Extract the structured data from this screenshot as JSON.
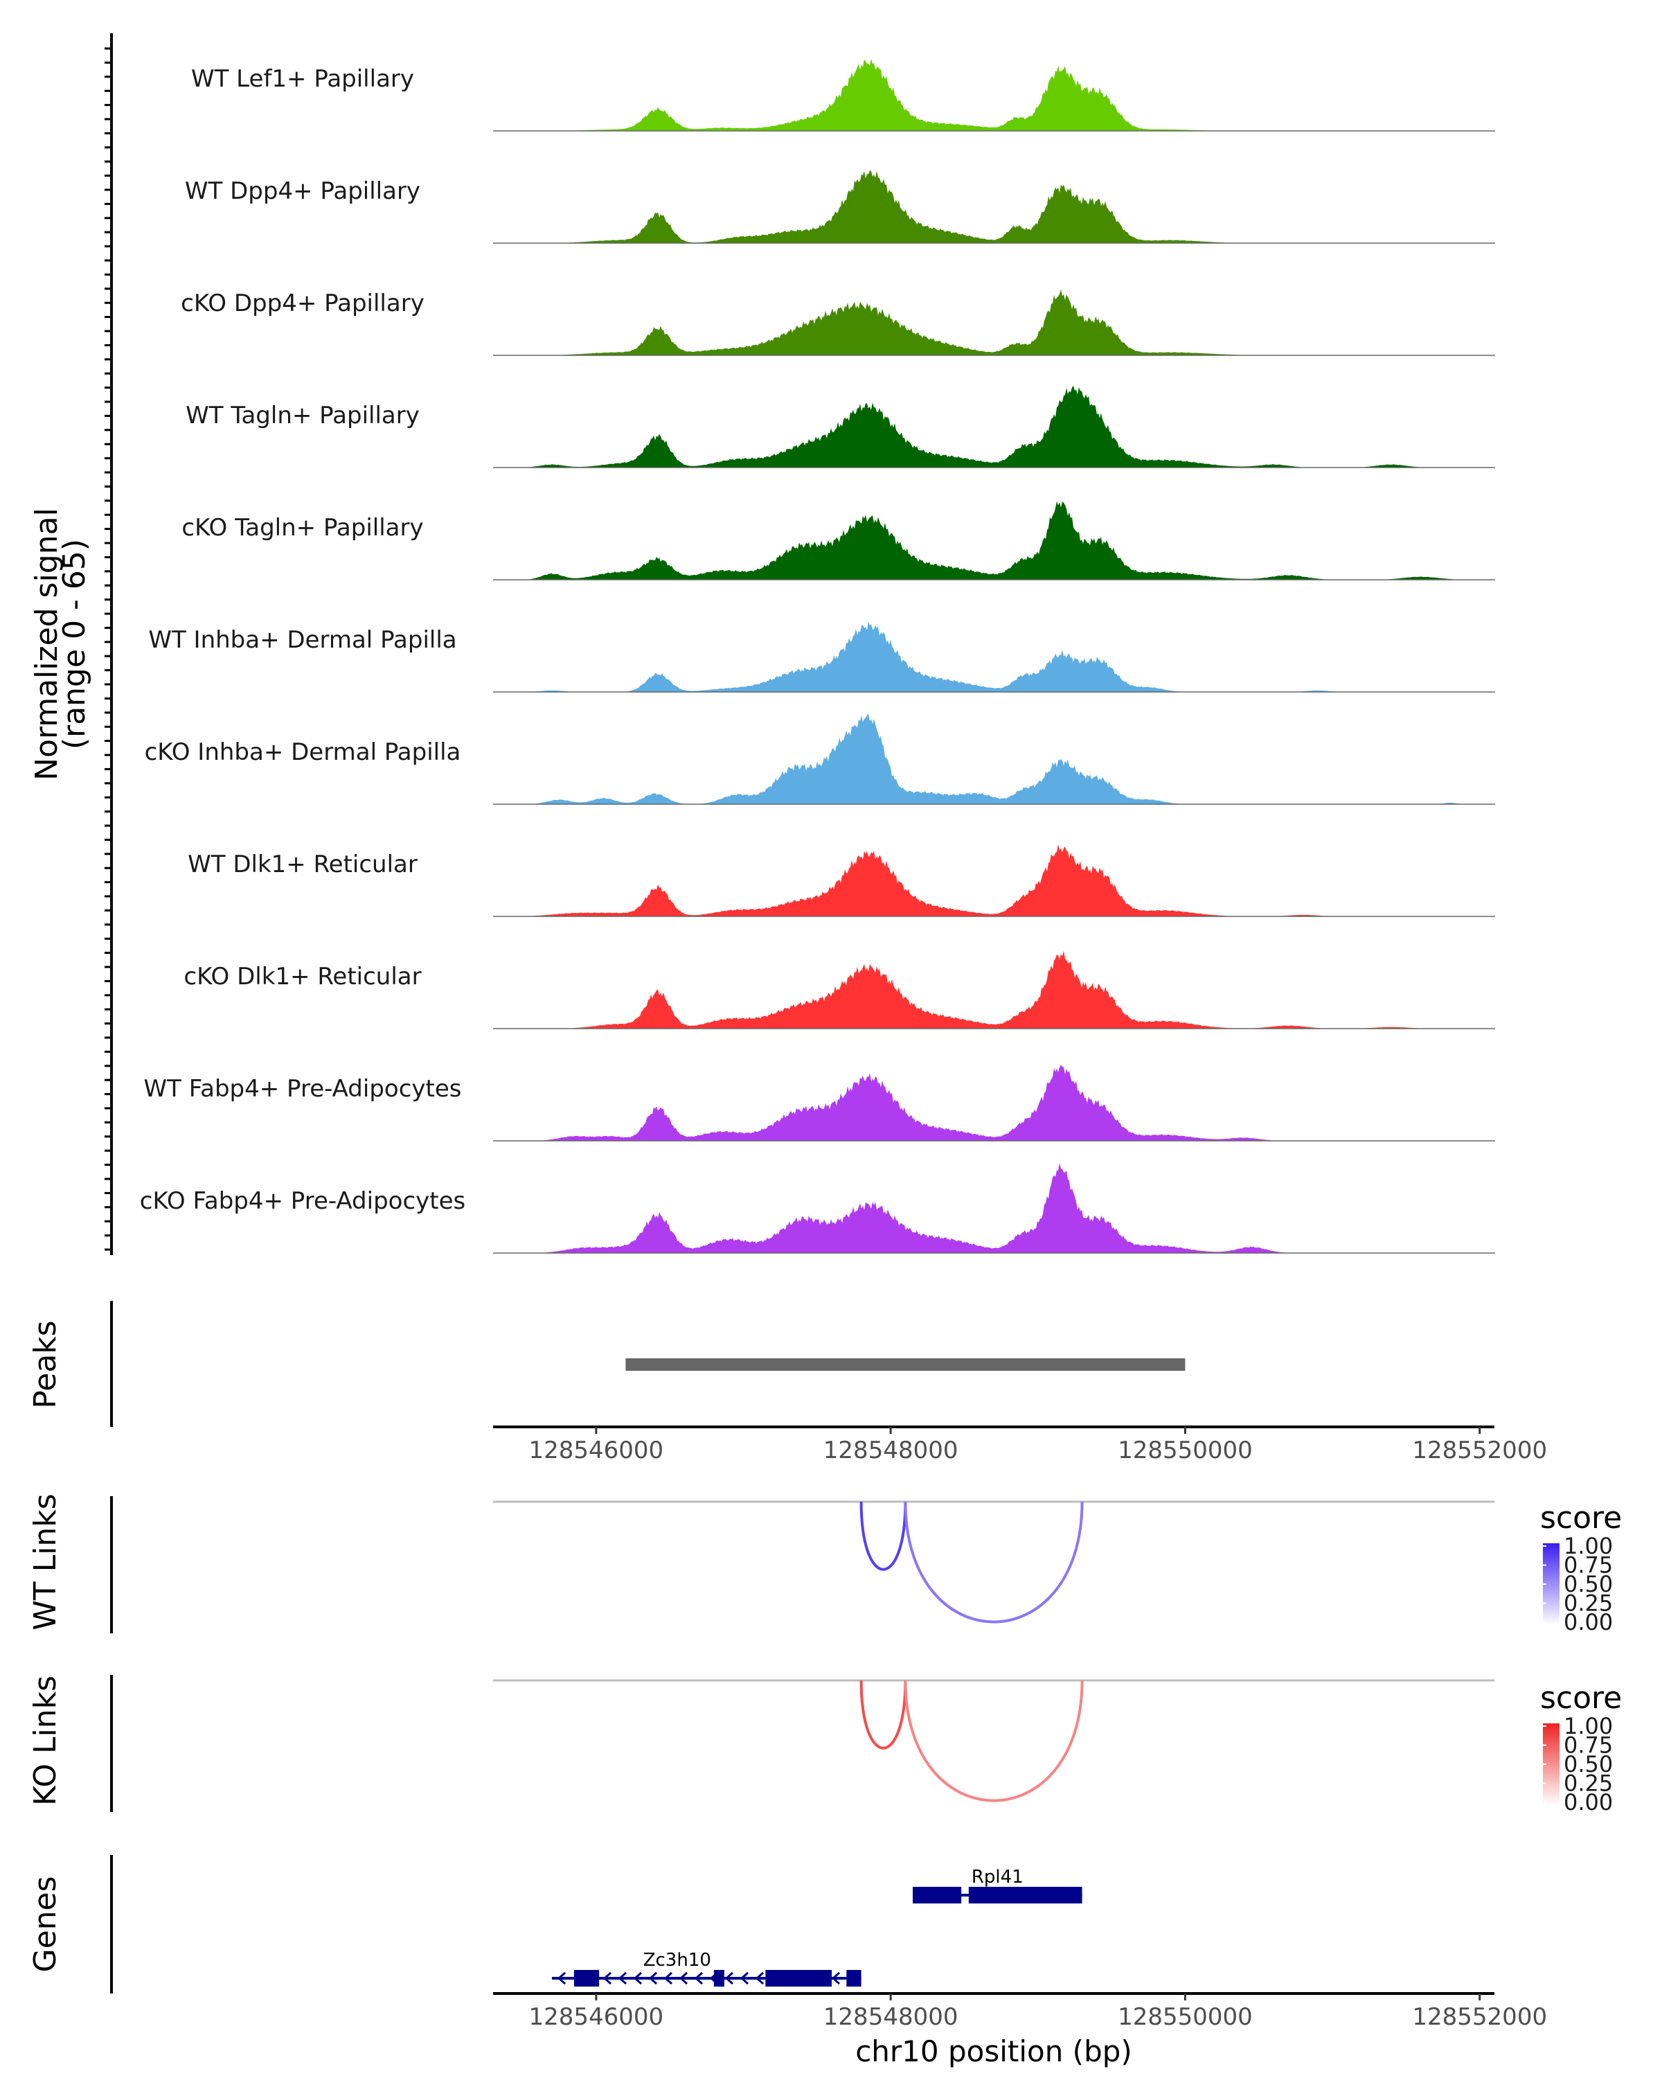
{
  "chart_data": {
    "type": "area",
    "title": "",
    "chromosome": "chr10",
    "x_range": [
      128545300,
      128552100
    ],
    "coverage_ylabel_line1": "Normalized signal",
    "coverage_ylabel_line2": "(range 0 - 65)",
    "coverage_range": [
      0,
      65
    ],
    "xlabel": "chr10 position (bp)",
    "x_ticks": [
      128546000,
      128548000,
      128550000,
      128552000
    ],
    "x_tick_labels": [
      "128546000",
      "128548000",
      "128550000",
      "128552000"
    ],
    "tracks": [
      {
        "name": "WT Lef1+ Papillary",
        "color": "#66cc00",
        "peaks": [
          [
            128546170,
            1,
            200
          ],
          [
            128546420,
            14,
            90
          ],
          [
            128546850,
            2,
            150
          ],
          [
            128547500,
            8,
            220
          ],
          [
            128547850,
            42,
            150
          ],
          [
            128548300,
            5,
            300
          ],
          [
            128548850,
            7,
            60
          ],
          [
            128549150,
            40,
            110
          ],
          [
            128549420,
            24,
            110
          ],
          [
            128549850,
            1,
            200
          ]
        ]
      },
      {
        "name": "WT Dpp4+ Papillary",
        "color": "#468a00",
        "peaks": [
          [
            128546150,
            2,
            180
          ],
          [
            128546420,
            19,
            80
          ],
          [
            128546950,
            3,
            120
          ],
          [
            128547350,
            8,
            200
          ],
          [
            128547850,
            44,
            160
          ],
          [
            128548250,
            9,
            250
          ],
          [
            128548850,
            10,
            60
          ],
          [
            128549150,
            36,
            110
          ],
          [
            128549420,
            26,
            110
          ],
          [
            128549900,
            2,
            200
          ]
        ]
      },
      {
        "name": "cKO Dpp4+ Papillary",
        "color": "#468a00",
        "peaks": [
          [
            128546150,
            2,
            200
          ],
          [
            128546420,
            17,
            80
          ],
          [
            128546900,
            4,
            220
          ],
          [
            128547400,
            14,
            200
          ],
          [
            128547800,
            30,
            220
          ],
          [
            128548250,
            8,
            250
          ],
          [
            128548850,
            7,
            70
          ],
          [
            128549150,
            40,
            100
          ],
          [
            128549420,
            22,
            110
          ],
          [
            128549900,
            2,
            250
          ]
        ]
      },
      {
        "name": "WT Tagln+ Papillary",
        "color": "#006400",
        "peaks": [
          [
            128545700,
            2,
            80
          ],
          [
            128546200,
            3,
            150
          ],
          [
            128546420,
            20,
            80
          ],
          [
            128546950,
            5,
            150
          ],
          [
            128547450,
            15,
            200
          ],
          [
            128547850,
            37,
            170
          ],
          [
            128548300,
            8,
            280
          ],
          [
            128548900,
            12,
            80
          ],
          [
            128549200,
            44,
            120
          ],
          [
            128549400,
            26,
            120
          ],
          [
            128549850,
            5,
            250
          ],
          [
            128550600,
            2,
            100
          ],
          [
            128551400,
            2,
            100
          ]
        ]
      },
      {
        "name": "cKO Tagln+ Papillary",
        "color": "#006400",
        "peaks": [
          [
            128545700,
            4,
            70
          ],
          [
            128546150,
            5,
            150
          ],
          [
            128546420,
            13,
            90
          ],
          [
            128546850,
            6,
            150
          ],
          [
            128547400,
            22,
            180
          ],
          [
            128547850,
            38,
            170
          ],
          [
            128548300,
            9,
            280
          ],
          [
            128548900,
            12,
            80
          ],
          [
            128549150,
            50,
            90
          ],
          [
            128549420,
            25,
            110
          ],
          [
            128549850,
            5,
            250
          ],
          [
            128550700,
            3,
            120
          ],
          [
            128551600,
            2,
            120
          ]
        ]
      },
      {
        "name": "WT Inhba+ Dermal Papilla",
        "color": "#5dade2",
        "peaks": [
          [
            128545700,
            1,
            80
          ],
          [
            128546420,
            12,
            80
          ],
          [
            128546900,
            2,
            150
          ],
          [
            128547400,
            14,
            200
          ],
          [
            128547850,
            40,
            160
          ],
          [
            128548250,
            9,
            280
          ],
          [
            128548900,
            9,
            70
          ],
          [
            128549150,
            24,
            110
          ],
          [
            128549420,
            20,
            110
          ],
          [
            128549750,
            3,
            100
          ],
          [
            128550900,
            1,
            80
          ]
        ]
      },
      {
        "name": "cKO Inhba+ Dermal Papilla",
        "color": "#5dade2",
        "peaks": [
          [
            128545750,
            3,
            80
          ],
          [
            128546050,
            4,
            80
          ],
          [
            128546400,
            7,
            80
          ],
          [
            128546950,
            6,
            100
          ],
          [
            128547350,
            24,
            140
          ],
          [
            128547700,
            40,
            130
          ],
          [
            128547880,
            38,
            90
          ],
          [
            128548200,
            8,
            200
          ],
          [
            128548600,
            6,
            120
          ],
          [
            128548900,
            8,
            70
          ],
          [
            128549150,
            28,
            110
          ],
          [
            128549420,
            16,
            110
          ],
          [
            128549750,
            3,
            100
          ],
          [
            128551800,
            1,
            40
          ]
        ]
      },
      {
        "name": "WT Dlk1+ Reticular",
        "color": "#ff3333",
        "peaks": [
          [
            128545850,
            2,
            150
          ],
          [
            128546150,
            2,
            150
          ],
          [
            128546420,
            19,
            80
          ],
          [
            128546950,
            4,
            150
          ],
          [
            128547400,
            10,
            180
          ],
          [
            128547850,
            40,
            170
          ],
          [
            128548250,
            6,
            250
          ],
          [
            128548900,
            10,
            80
          ],
          [
            128549150,
            44,
            110
          ],
          [
            128549420,
            28,
            110
          ],
          [
            128549850,
            4,
            200
          ],
          [
            128550800,
            1,
            100
          ]
        ]
      },
      {
        "name": "cKO Dlk1+ Reticular",
        "color": "#ff3333",
        "peaks": [
          [
            128546150,
            3,
            150
          ],
          [
            128546420,
            24,
            80
          ],
          [
            128546900,
            6,
            150
          ],
          [
            128547400,
            15,
            200
          ],
          [
            128547850,
            38,
            180
          ],
          [
            128548300,
            8,
            260
          ],
          [
            128548900,
            9,
            80
          ],
          [
            128549150,
            48,
            100
          ],
          [
            128549420,
            26,
            110
          ],
          [
            128549850,
            5,
            200
          ],
          [
            128550700,
            2,
            120
          ],
          [
            128551400,
            1,
            120
          ]
        ]
      },
      {
        "name": "WT Fabp4+ Pre-Adipocytes",
        "color": "#b03cf0",
        "peaks": [
          [
            128545850,
            3,
            100
          ],
          [
            128546100,
            3,
            100
          ],
          [
            128546420,
            22,
            80
          ],
          [
            128546850,
            6,
            150
          ],
          [
            128547400,
            20,
            180
          ],
          [
            128547850,
            40,
            170
          ],
          [
            128548300,
            8,
            250
          ],
          [
            128548900,
            9,
            80
          ],
          [
            128549150,
            48,
            110
          ],
          [
            128549420,
            22,
            110
          ],
          [
            128549850,
            4,
            200
          ],
          [
            128550400,
            2,
            100
          ]
        ]
      },
      {
        "name": "cKO Fabp4+ Pre-Adipocytes",
        "color": "#b03cf0",
        "peaks": [
          [
            128545900,
            3,
            120
          ],
          [
            128546200,
            4,
            150
          ],
          [
            128546420,
            24,
            90
          ],
          [
            128546900,
            9,
            150
          ],
          [
            128547400,
            22,
            160
          ],
          [
            128547850,
            30,
            170
          ],
          [
            128548300,
            10,
            250
          ],
          [
            128548900,
            12,
            80
          ],
          [
            128549150,
            56,
            90
          ],
          [
            128549420,
            22,
            110
          ],
          [
            128549800,
            5,
            200
          ],
          [
            128550450,
            4,
            100
          ]
        ]
      }
    ],
    "peaks_track": {
      "label": "Peaks",
      "intervals": [
        [
          128546200,
          128550000
        ]
      ],
      "color": "#666666"
    },
    "link_tracks": [
      {
        "label": "WT Links",
        "legend_title": "score",
        "legend_ticks": [
          "1.00",
          "0.75",
          "0.50",
          "0.25",
          "0.00"
        ],
        "scale_low": "#ffffff",
        "scale_high": "#3b1df0",
        "links": [
          {
            "start": 128547800,
            "end": 128548100,
            "score": 0.85
          },
          {
            "start": 128548100,
            "end": 128549300,
            "score": 0.6
          }
        ]
      },
      {
        "label": "KO Links",
        "legend_title": "score",
        "legend_ticks": [
          "1.00",
          "0.75",
          "0.50",
          "0.25",
          "0.00"
        ],
        "scale_low": "#ffffff",
        "scale_high": "#ee2222",
        "links": [
          {
            "start": 128547800,
            "end": 128548100,
            "score": 0.8
          },
          {
            "start": 128548100,
            "end": 128549300,
            "score": 0.55
          }
        ]
      }
    ],
    "genes_track": {
      "label": "Genes",
      "color": "#00008b",
      "genes": [
        {
          "name": "Rpl41",
          "strand": "+",
          "start": 128548150,
          "end": 128549300,
          "exons": [
            [
              128548150,
              128548480
            ],
            [
              128548530,
              128549300
            ]
          ]
        },
        {
          "name": "Zc3h10",
          "strand": "-",
          "start": 128545700,
          "end": 128547800,
          "exons": [
            [
              128545850,
              128546020
            ],
            [
              128546800,
              128546870
            ],
            [
              128547150,
              128547600
            ],
            [
              128547700,
              128547800
            ]
          ]
        }
      ]
    }
  }
}
